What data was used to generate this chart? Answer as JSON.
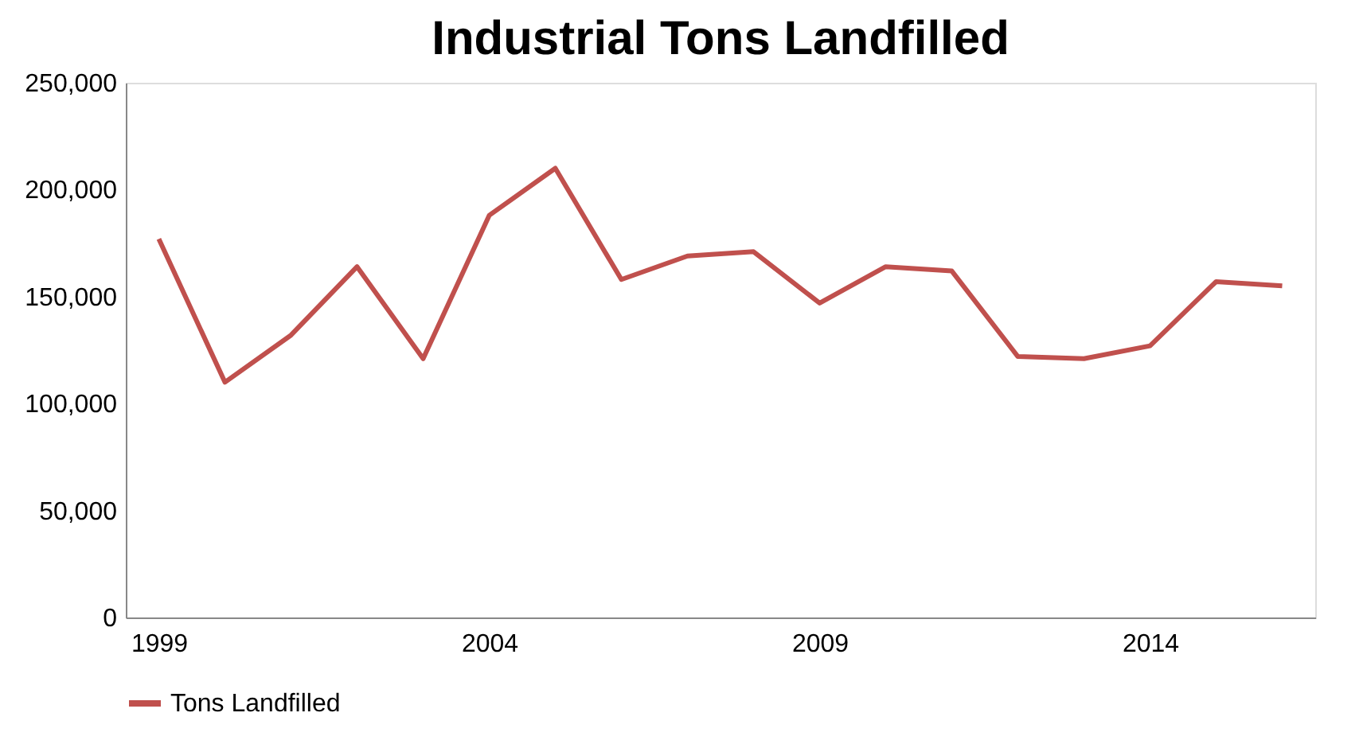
{
  "chart_data": {
    "type": "line",
    "title": "Industrial Tons Landfilled",
    "x": [
      1999,
      2000,
      2001,
      2002,
      2003,
      2004,
      2005,
      2006,
      2007,
      2008,
      2009,
      2010,
      2011,
      2012,
      2013,
      2014,
      2015,
      2016
    ],
    "series": [
      {
        "name": "Tons Landfilled",
        "color": "#c0504d",
        "values": [
          177000,
          110000,
          132000,
          164000,
          121000,
          188000,
          210000,
          158000,
          169000,
          171000,
          147000,
          164000,
          162000,
          122000,
          121000,
          127000,
          157000,
          155000
        ]
      }
    ],
    "xlim": [
      1998.5,
      2016.5
    ],
    "xticks": [
      1999,
      2004,
      2009,
      2014
    ],
    "ylim": [
      0,
      250000
    ],
    "yticks": [
      0,
      {
        "value": 50000,
        "label": "50,000"
      },
      {
        "value": 100000,
        "label": "100,000"
      },
      {
        "value": 150000,
        "label": "150,000"
      },
      {
        "value": 200000,
        "label": "200,000"
      },
      {
        "value": 250000,
        "label": "250,000"
      }
    ],
    "grid": false,
    "legend": "bottom",
    "marker": "none",
    "line_style": "solid"
  }
}
